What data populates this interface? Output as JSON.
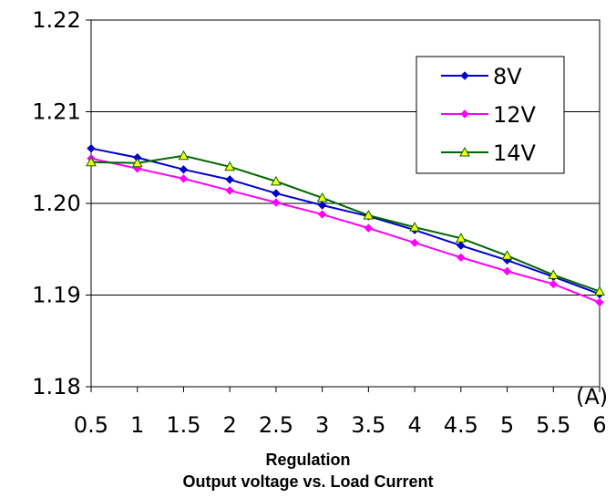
{
  "chart_data": {
    "type": "line",
    "title": "Regulation",
    "subtitle": "Output voltage vs. Load Current",
    "xlabel": "",
    "x_unit": "(A)",
    "ylabel": "",
    "x": [
      0.5,
      1,
      1.5,
      2,
      2.5,
      3,
      3.5,
      4,
      4.5,
      5,
      5.5,
      6
    ],
    "x_tick_labels": [
      "0.5",
      "1",
      "1.5",
      "2",
      "2.5",
      "3",
      "3.5",
      "4",
      "4.5",
      "5",
      "5.5",
      "6"
    ],
    "ylim": [
      1.18,
      1.22
    ],
    "y_ticks": [
      1.18,
      1.19,
      1.2,
      1.21,
      1.22
    ],
    "y_tick_labels": [
      "1.18",
      "1.19",
      "1.20",
      "1.21",
      "1.22"
    ],
    "grid": "horizontal",
    "legend_position": "top-right",
    "series": [
      {
        "name": "8V",
        "color": "#0000cc",
        "marker": "diamond",
        "marker_fill": "#0000cc",
        "values": [
          1.206,
          1.205,
          1.2037,
          1.2026,
          1.2011,
          1.1998,
          1.1986,
          1.1971,
          1.1954,
          1.1938,
          1.192,
          1.1901
        ]
      },
      {
        "name": "12V",
        "color": "#ff00ff",
        "marker": "diamond",
        "marker_fill": "#ff00ff",
        "values": [
          1.2049,
          1.2038,
          1.2027,
          1.2014,
          1.2001,
          1.1988,
          1.1973,
          1.1957,
          1.1941,
          1.1926,
          1.1912,
          1.1892
        ]
      },
      {
        "name": "14V",
        "color": "#006600",
        "marker": "triangle",
        "marker_fill": "#ffff00",
        "values": [
          1.2045,
          1.2044,
          1.2052,
          1.204,
          1.2024,
          1.2006,
          1.1987,
          1.1974,
          1.1962,
          1.1943,
          1.1922,
          1.1904
        ]
      }
    ]
  }
}
